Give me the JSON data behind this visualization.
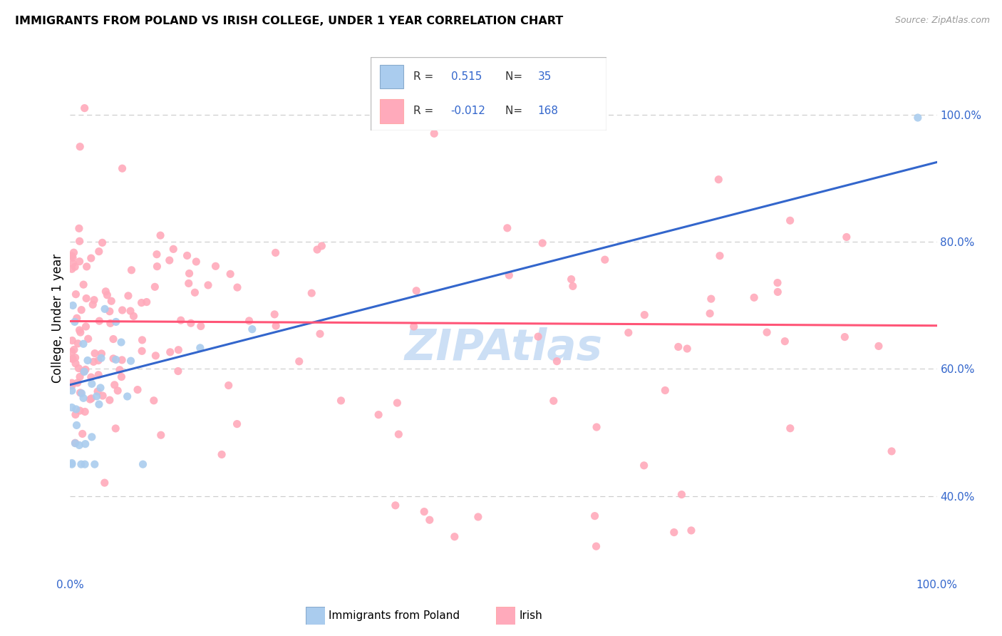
{
  "title": "IMMIGRANTS FROM POLAND VS IRISH COLLEGE, UNDER 1 YEAR CORRELATION CHART",
  "source": "Source: ZipAtlas.com",
  "ylabel": "College, Under 1 year",
  "R_poland": 0.515,
  "N_poland": 35,
  "R_irish": -0.012,
  "N_irish": 168,
  "blue_marker_color": "#AACCEE",
  "pink_marker_color": "#FFAABB",
  "blue_line_color": "#3366CC",
  "pink_line_color": "#FF5577",
  "watermark_color": "#CCDFF5",
  "grid_color": "#CCCCCC",
  "title_fontsize": 11.5,
  "source_fontsize": 9,
  "label_fontsize": 11,
  "tick_fontsize": 11,
  "legend_fontsize": 11,
  "xlim": [
    0,
    1.0
  ],
  "ylim": [
    0.28,
    1.08
  ],
  "yticks": [
    0.4,
    0.6,
    0.8,
    1.0
  ],
  "ytick_labels": [
    "40.0%",
    "60.0%",
    "80.0%",
    "100.0%"
  ],
  "xtick_label_left": "0.0%",
  "xtick_label_right": "100.0%",
  "legend_R1": "0.515",
  "legend_N1": "35",
  "legend_R2": "-0.012",
  "legend_N2": "168",
  "bottom_legend1": "Immigrants from Poland",
  "bottom_legend2": "Irish",
  "blue_line_x0": 0.0,
  "blue_line_y0": 0.575,
  "blue_line_x1": 1.0,
  "blue_line_y1": 0.925,
  "pink_line_x0": 0.0,
  "pink_line_y0": 0.675,
  "pink_line_x1": 1.0,
  "pink_line_y1": 0.668
}
